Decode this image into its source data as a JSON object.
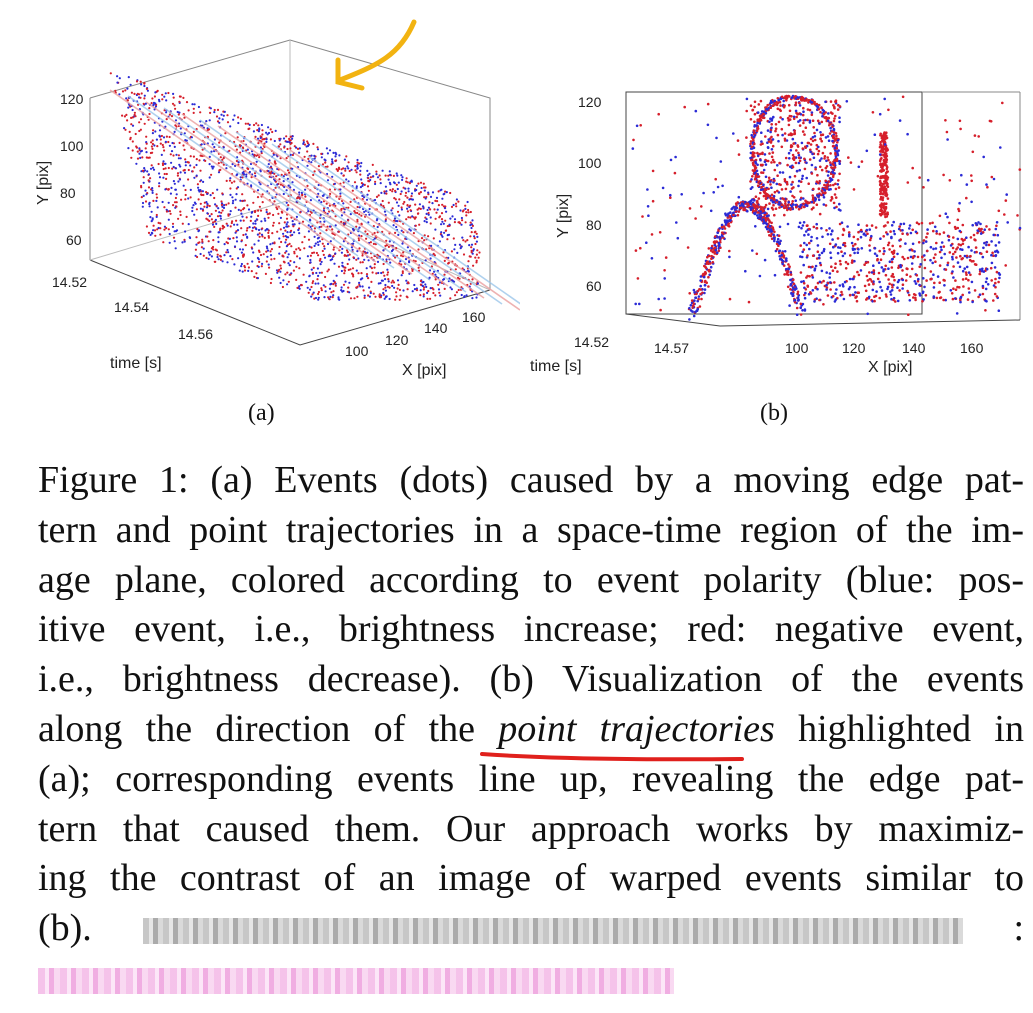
{
  "figures": {
    "a": {
      "sub_label": "(a)",
      "y_axis_label": "Y [pix]",
      "x_axis_label": "X [pix]",
      "t_axis_label": "time [s]",
      "y_ticks": [
        "120",
        "100",
        "80",
        "60"
      ],
      "x_ticks": [
        "100",
        "120",
        "140",
        "160"
      ],
      "t_ticks": [
        "14.52",
        "14.54",
        "14.56"
      ]
    },
    "b": {
      "sub_label": "(b)",
      "y_axis_label": "Y [pix]",
      "x_axis_label": "X [pix]",
      "t_axis_label": "time [s]",
      "y_ticks": [
        "120",
        "100",
        "80",
        "60"
      ],
      "x_ticks": [
        "100",
        "120",
        "140",
        "160"
      ],
      "t_ticks": [
        "14.52",
        "14.57"
      ]
    }
  },
  "caption": {
    "lines": [
      "Figure 1: (a) Events (dots) caused by a moving edge pat-",
      "tern and point trajectories in a space-time region of the im-",
      "age plane, colored according to event polarity (blue: pos-",
      "itive event, i.e., brightness increase; red:  negative event,",
      "i.e., brightness decrease).  (b) Visualization of the events"
    ],
    "line6_before": "along the direction of the ",
    "line6_emph": "point trajectories",
    "line6_after": " highlighted in",
    "line7": "(a); corresponding events line up, revealing the edge pat-",
    "line8": "tern that caused them.  Our approach works by maximiz-",
    "line9": "ing the contrast of an image of warped events similar to",
    "line10_start": "(b).",
    "line10_end": ":"
  },
  "colors": {
    "positive_event": "#2b2bd6",
    "negative_event": "#d61f2b",
    "annotation_arrow": "#f2b311",
    "annotation_underline": "#e0201c"
  }
}
